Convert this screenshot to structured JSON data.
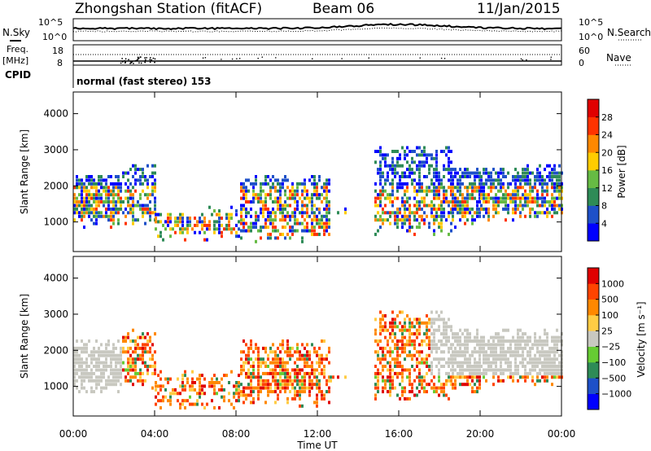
{
  "header": {
    "station": "Zhongshan Station (fitACF)",
    "beam": "Beam 06",
    "date": "11/Jan/2015"
  },
  "noise_panel": {
    "left_label": "N.Sky",
    "right_label": "N.Search",
    "left_ticks": [
      "10^5",
      "10^0"
    ],
    "right_ticks": [
      "10^5",
      "10^0"
    ]
  },
  "freq_panel": {
    "left_label_1": "Freq.",
    "left_label_2": "[MHz]",
    "right_label": "Nave",
    "left_ticks": [
      "18",
      "8"
    ],
    "right_ticks": [
      "60",
      "0"
    ]
  },
  "cpid": {
    "label": "CPID",
    "text": "normal (fast stereo) 153"
  },
  "chart_data": [
    {
      "type": "heatmap",
      "name": "power",
      "ylabel": "Slant Range [km]",
      "y_ticks": [
        "1000",
        "2000",
        "3000",
        "4000"
      ],
      "ylim": [
        180,
        4600
      ],
      "colorbar_label": "Power [dB]",
      "colorbar_ticks": [
        "4",
        "8",
        "12",
        "16",
        "20",
        "24",
        "28"
      ],
      "colors": [
        "#0000ff",
        "#1e50c8",
        "#2e8b57",
        "#66bb44",
        "#ffcc00",
        "#ff8800",
        "#ff3300",
        "#e00000"
      ]
    },
    {
      "type": "heatmap",
      "name": "velocity",
      "ylabel": "Slant Range [km]",
      "y_ticks": [
        "1000",
        "2000",
        "3000",
        "4000"
      ],
      "ylim": [
        180,
        4600
      ],
      "colorbar_label": "Velocity [m s⁻¹]",
      "colorbar_ticks": [
        "1000",
        "500",
        "100",
        "25",
        "−25",
        "−100",
        "−500",
        "−1000"
      ],
      "colors": [
        "#0000ff",
        "#1e50c8",
        "#2e8b57",
        "#66cc33",
        "#c8c8c0",
        "#ffcc44",
        "#ff8800",
        "#ff4400",
        "#e00000"
      ]
    }
  ],
  "x_axis": {
    "label": "Time UT",
    "ticks": [
      "00:00",
      "04:00",
      "08:00",
      "12:00",
      "16:00",
      "20:00",
      "00:00"
    ],
    "xlim_hours": [
      0,
      24
    ]
  }
}
